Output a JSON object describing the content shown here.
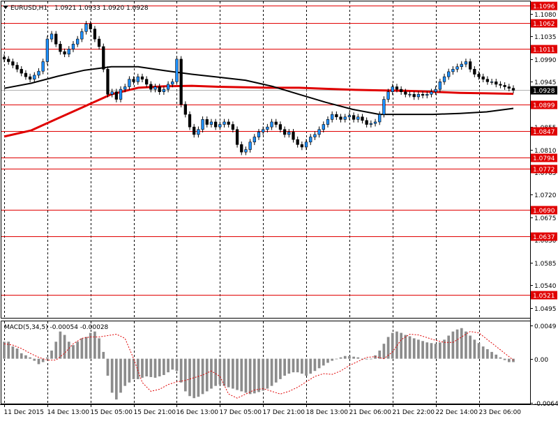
{
  "chart_data": [
    {
      "type": "candlestick",
      "title": "EURUSD,H1",
      "ohlc_label": "1.0921 1.0933 1.0920 1.0928",
      "current_price": 1.0928,
      "current_price_label": "1.0928",
      "ylim": [
        1.0475,
        1.1105
      ],
      "y_ticks": [
        "1.1080",
        "1.1035",
        "1.0990",
        "1.0945",
        "1.0900",
        "1.0855",
        "1.0810",
        "1.0765",
        "1.0720",
        "1.0675",
        "1.0630",
        "1.0585",
        "1.0540",
        "1.0495"
      ],
      "x_tick_labels": [
        "11 Dec 2015",
        "14 Dec 13:00",
        "15 Dec 05:00",
        "15 Dec 21:00",
        "16 Dec 13:00",
        "17 Dec 05:00",
        "17 Dec 21:00",
        "18 Dec 13:00",
        "21 Dec 06:00",
        "21 Dec 22:00",
        "22 Dec 14:00",
        "23 Dec 06:00"
      ],
      "x_range": [
        0,
        118
      ],
      "x_tick_positions": [
        0,
        10,
        20,
        30,
        40,
        50,
        60,
        70,
        80,
        90,
        100,
        110
      ],
      "level_lines": [
        {
          "value": 1.1096,
          "label": "1.1096"
        },
        {
          "value": 1.1062,
          "label": "1.1062"
        },
        {
          "value": 1.1011,
          "label": "1.1011"
        },
        {
          "value": 1.0899,
          "label": "1.0899"
        },
        {
          "value": 1.0847,
          "label": "1.0847"
        },
        {
          "value": 1.0794,
          "label": "1.0794"
        },
        {
          "value": 1.0772,
          "label": "1.0772"
        },
        {
          "value": 1.069,
          "label": "1.0690"
        },
        {
          "value": 1.0637,
          "label": "1.0637"
        },
        {
          "value": 1.0521,
          "label": "1.0521"
        }
      ],
      "closes": [
        1.099,
        1.0985,
        1.0978,
        1.097,
        1.0962,
        1.0955,
        1.095,
        1.0958,
        1.0966,
        1.0985,
        1.103,
        1.104,
        1.102,
        1.1005,
        1.1,
        1.101,
        1.102,
        1.103,
        1.1045,
        1.106,
        1.105,
        1.103,
        1.1015,
        1.097,
        1.092,
        1.0925,
        1.091,
        1.093,
        1.0935,
        1.095,
        1.0945,
        1.0955,
        1.095,
        1.094,
        1.093,
        1.0935,
        1.0925,
        1.093,
        1.094,
        1.0945,
        1.099,
        1.09,
        1.088,
        1.0855,
        1.084,
        1.085,
        1.087,
        1.086,
        1.0865,
        1.0855,
        1.086,
        1.0865,
        1.086,
        1.085,
        1.082,
        1.0805,
        1.081,
        1.0825,
        1.0835,
        1.0845,
        1.085,
        1.0855,
        1.0865,
        1.086,
        1.085,
        1.084,
        1.0845,
        1.083,
        1.082,
        1.0815,
        1.0825,
        1.0835,
        1.084,
        1.085,
        1.086,
        1.087,
        1.088,
        1.0875,
        1.087,
        1.0875,
        1.0878,
        1.087,
        1.0875,
        1.0868,
        1.086,
        1.0862,
        1.0865,
        1.088,
        1.091,
        1.0925,
        1.0935,
        1.093,
        1.0925,
        1.092,
        1.092,
        1.0915,
        1.092,
        1.0918,
        1.092,
        1.0925,
        1.093,
        1.0945,
        1.0955,
        1.0965,
        1.097,
        1.0975,
        1.098,
        1.0985,
        1.097,
        1.096,
        1.0955,
        1.095,
        1.0945,
        1.0945,
        1.094,
        1.0938,
        1.0935,
        1.0932,
        1.0928
      ],
      "overlay_series": [
        {
          "color": "#e00000",
          "values": [
            1.0836,
            1.0848,
            1.0872,
            1.0896,
            1.092,
            1.0933,
            1.0936,
            1.0937,
            1.0935,
            1.0934,
            1.0933,
            1.0933,
            1.0931,
            1.0929,
            1.0928,
            1.0927,
            1.0925,
            1.0923,
            1.0922,
            1.0921
          ]
        },
        {
          "color": "#000000",
          "values": [
            1.0932,
            1.0942,
            1.0956,
            1.0968,
            1.0975,
            1.0975,
            1.0967,
            1.096,
            1.0954,
            1.0948,
            1.0936,
            1.092,
            1.0904,
            1.089,
            1.088,
            1.088,
            1.088,
            1.0882,
            1.0885,
            1.0892
          ]
        }
      ]
    },
    {
      "type": "bar",
      "title": "MACD(5,34,5) -0.00054 -0.00028",
      "ylim": [
        -0.0066,
        0.0055
      ],
      "y_ticks": [
        "0.0049",
        "0.00",
        "-0.00645"
      ],
      "histogram": [
        0.0025,
        0.0025,
        0.0018,
        0.0015,
        0.0008,
        0.0005,
        0.0002,
        -0.0003,
        -0.0008,
        -0.0005,
        0.0002,
        0.0012,
        0.0025,
        0.004,
        0.0035,
        0.0025,
        0.002,
        0.0025,
        0.003,
        0.0032,
        0.0038,
        0.004,
        0.003,
        0.001,
        -0.0025,
        -0.005,
        -0.006,
        -0.005,
        -0.004,
        -0.0035,
        -0.003,
        -0.003,
        -0.0028,
        -0.0026,
        -0.0027,
        -0.0028,
        -0.0026,
        -0.0024,
        -0.002,
        -0.0016,
        -0.0018,
        -0.0035,
        -0.0048,
        -0.0055,
        -0.0058,
        -0.0056,
        -0.0052,
        -0.0048,
        -0.0044,
        -0.004,
        -0.0038,
        -0.004,
        -0.0042,
        -0.0044,
        -0.0046,
        -0.0048,
        -0.005,
        -0.0052,
        -0.0051,
        -0.0049,
        -0.0047,
        -0.0044,
        -0.004,
        -0.0035,
        -0.003,
        -0.0025,
        -0.0022,
        -0.002,
        -0.002,
        -0.0022,
        -0.0025,
        -0.0022,
        -0.0018,
        -0.0014,
        -0.001,
        -0.0006,
        -0.0003,
        0.0,
        0.0002,
        0.0004,
        0.0004,
        0.0003,
        0.0002,
        0.0,
        -0.0001,
        0.0,
        0.0005,
        0.0012,
        0.0022,
        0.0032,
        0.0038,
        0.004,
        0.0038,
        0.0035,
        0.0033,
        0.003,
        0.0028,
        0.0026,
        0.0024,
        0.0023,
        0.0022,
        0.0024,
        0.0028,
        0.0034,
        0.004,
        0.0043,
        0.0045,
        0.004,
        0.0034,
        0.0028,
        0.0023,
        0.0018,
        0.0014,
        0.001,
        0.0006,
        0.0002,
        -0.0002,
        -0.0005,
        -0.0005
      ],
      "signal": [
        0.0022,
        0.002,
        0.0015,
        0.0008,
        0.0002,
        -0.0002,
        -0.0002,
        0.0008,
        0.0022,
        0.003,
        0.0032,
        0.0032,
        0.0034,
        0.0036,
        0.003,
        0.0,
        -0.0035,
        -0.0048,
        -0.0045,
        -0.0038,
        -0.0034,
        -0.0032,
        -0.0028,
        -0.0024,
        -0.0018,
        -0.0026,
        -0.0052,
        -0.0058,
        -0.0052,
        -0.0046,
        -0.0044,
        -0.0048,
        -0.0052,
        -0.0048,
        -0.0042,
        -0.0034,
        -0.0026,
        -0.0022,
        -0.0023,
        -0.0018,
        -0.001,
        -0.0004,
        0.0002,
        0.0003,
        0.0,
        0.001,
        0.0028,
        0.0036,
        0.0035,
        0.0031,
        0.0027,
        0.0024,
        0.0024,
        0.0032,
        0.004,
        0.0038,
        0.0028,
        0.0018,
        0.0008,
        -0.0002
      ]
    }
  ]
}
